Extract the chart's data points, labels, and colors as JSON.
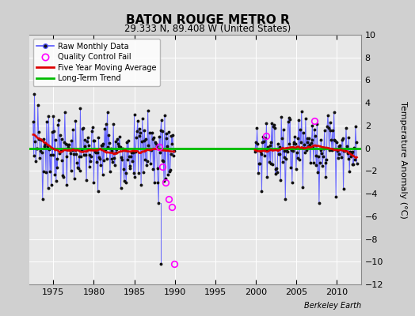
{
  "title": "BATON ROUGE METRO R",
  "subtitle": "29.333 N, 89.408 W (United States)",
  "ylabel": "Temperature Anomaly (°C)",
  "credit": "Berkeley Earth",
  "ylim": [
    -12,
    10
  ],
  "yticks": [
    -12,
    -10,
    -8,
    -6,
    -4,
    -2,
    0,
    2,
    4,
    6,
    8,
    10
  ],
  "xlim": [
    1972.0,
    2013.0
  ],
  "xticks": [
    1975,
    1980,
    1985,
    1990,
    1995,
    2000,
    2005,
    2010
  ],
  "bg_color": "#d0d0d0",
  "plot_bg_color": "#e8e8e8",
  "grid_color": "#ffffff",
  "raw_line_color": "#5555ff",
  "raw_marker_color": "#111111",
  "qc_fail_color": "#ff00ff",
  "moving_avg_color": "#dd0000",
  "trend_color": "#00bb00",
  "seg1_start": 1972.5,
  "seg1_end": 1990.0,
  "seg2_start": 1999.9,
  "seg2_end": 2012.5,
  "qc_times": [
    1988.1,
    1988.5,
    1988.9,
    1989.2,
    1989.6,
    1989.9
  ],
  "qc_vals": [
    0.1,
    -1.6,
    -3.0,
    -4.5,
    -5.2,
    -10.2
  ],
  "qc2_times": [
    2001.3,
    2007.2
  ],
  "qc2_vals": [
    1.1,
    2.4
  ]
}
